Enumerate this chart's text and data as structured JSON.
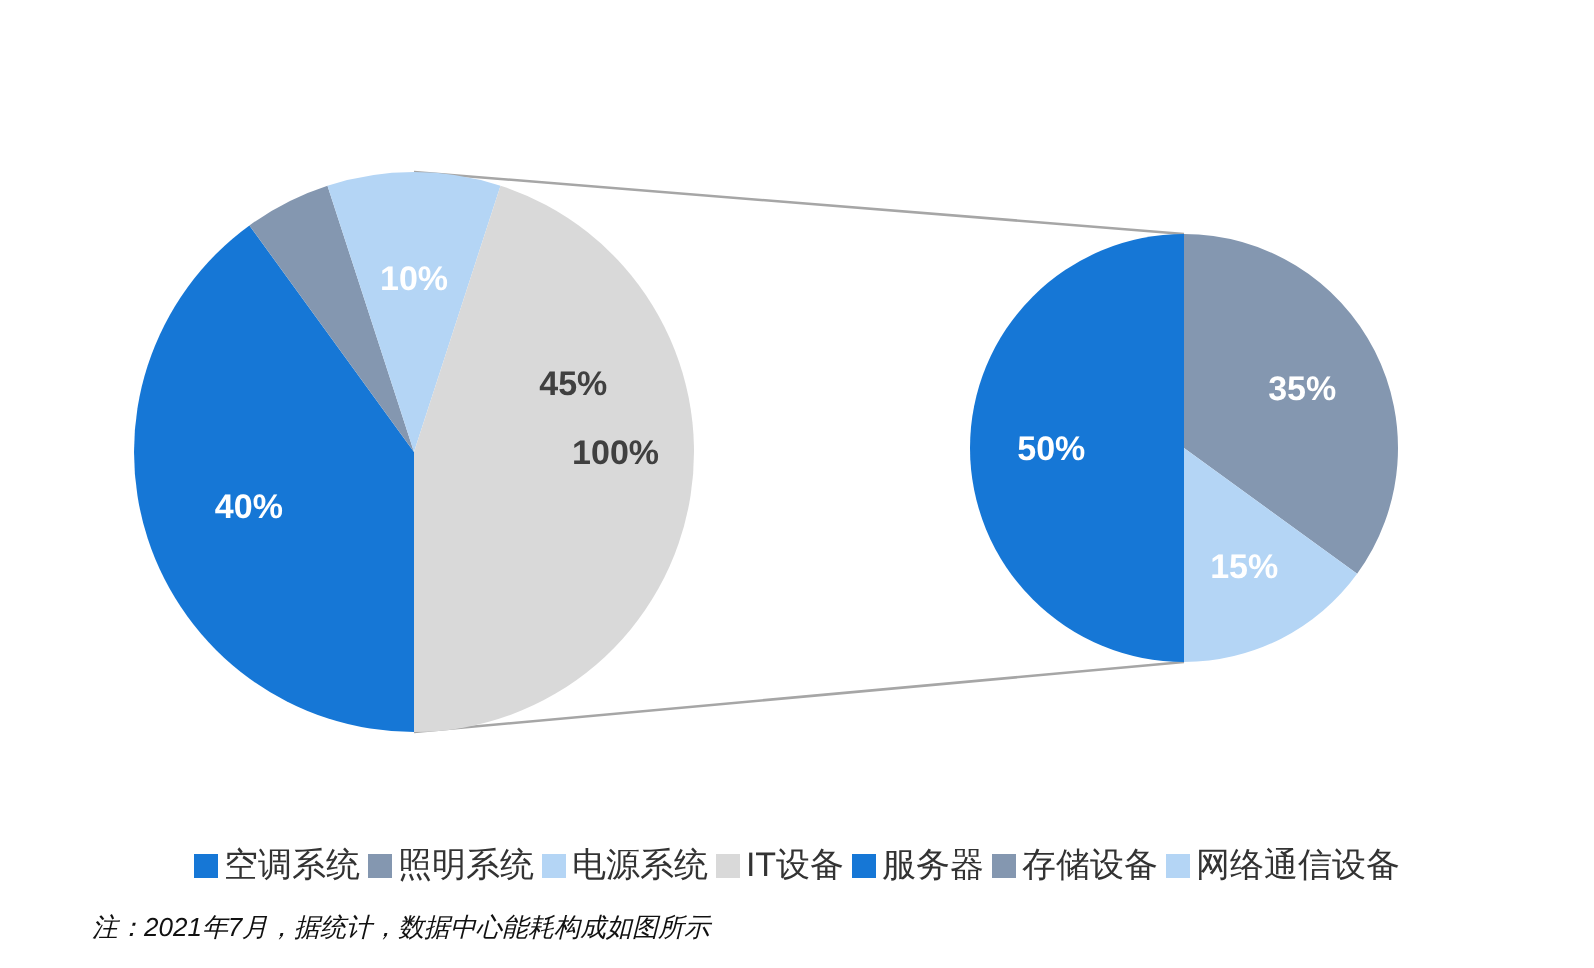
{
  "chart_data": [
    {
      "type": "pie",
      "categories": [
        "空调系统",
        "照明系统",
        "电源系统",
        "IT设备"
      ],
      "values": [
        40,
        5,
        10,
        45
      ],
      "colors": [
        "#1677d6",
        "#8497b0",
        "#b4d5f5",
        "#d9d9d9"
      ],
      "value_labels": [
        "40%",
        null,
        "10%",
        "45%"
      ],
      "annotations": [
        "100%"
      ],
      "legend": "bottom"
    },
    {
      "type": "pie",
      "categories": [
        "服务器",
        "存储设备",
        "网络通信设备"
      ],
      "values": [
        50,
        35,
        15
      ],
      "colors": [
        "#1677d6",
        "#8497b0",
        "#b4d5f5"
      ],
      "value_labels": [
        "50%",
        "35%",
        "15%"
      ],
      "legend": "bottom",
      "annotations": [
        "注：2021年7月，据统计，数据中心能耗构成如图所示"
      ]
    }
  ]
}
